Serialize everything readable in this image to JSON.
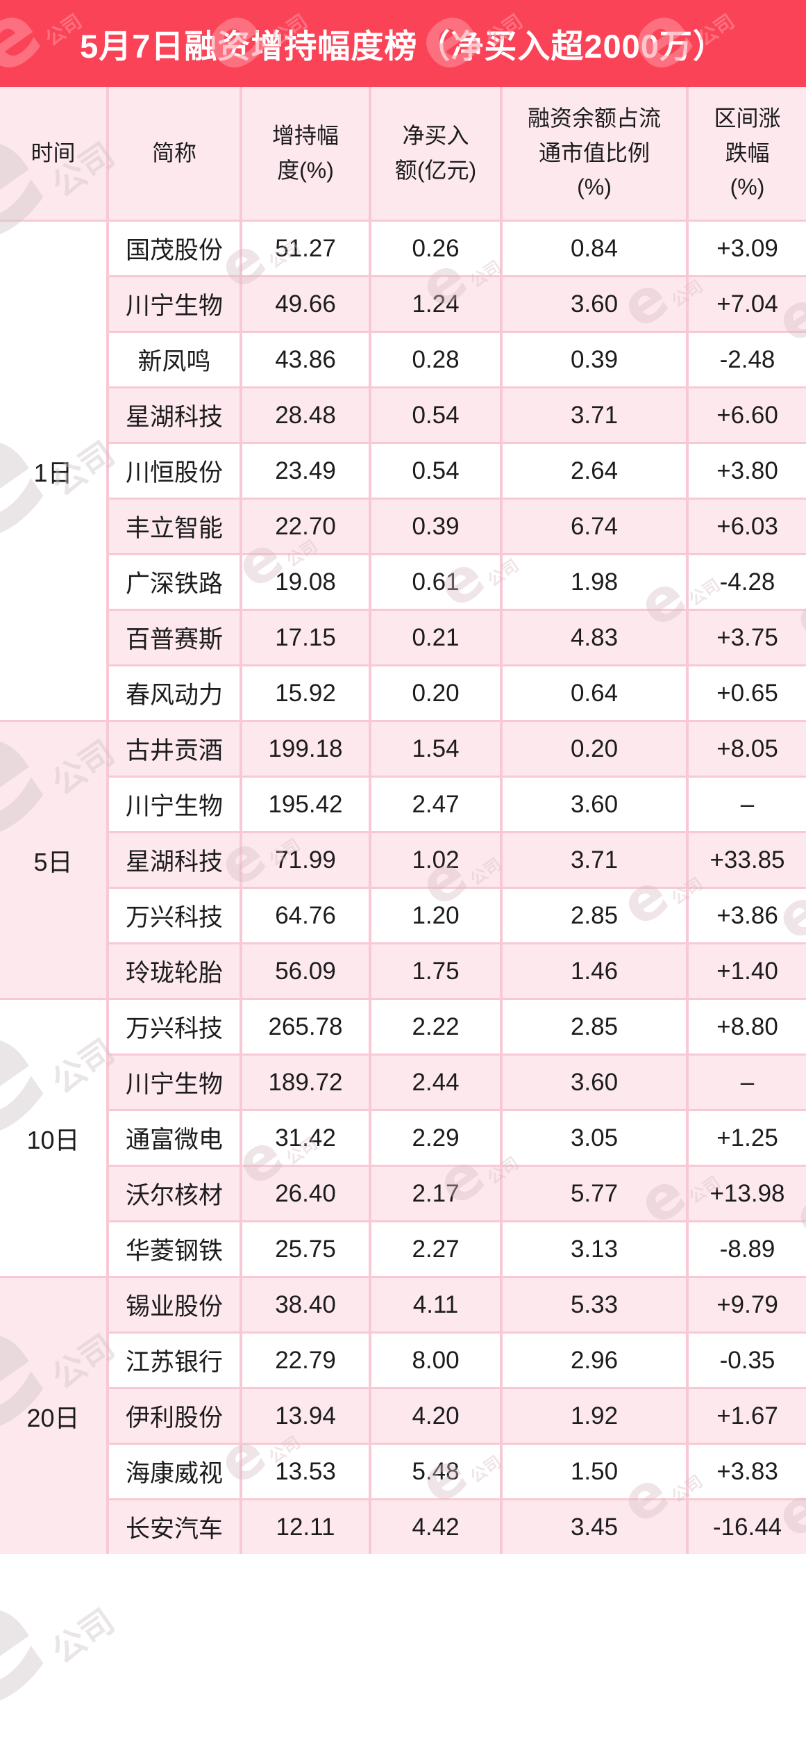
{
  "banner": {
    "title": "5月7日融资增持幅度榜（净买入超2000万）",
    "bg_color": "#fb4357",
    "text_color": "#ffffff"
  },
  "watermark": {
    "e": "e",
    "company": "公司"
  },
  "colors": {
    "row_pink": "#fde9ed",
    "row_white": "#ffffff",
    "grid_line": "#f8c9d4",
    "text": "#1c1c1e"
  },
  "chart_data": {
    "type": "table",
    "title": "5月7日融资增持幅度榜（净买入超2000万）",
    "columns": [
      "时间",
      "简称",
      "增持幅度(%)",
      "净买入额(亿元)",
      "融资余额占流通市值比例(%)",
      "区间涨跌幅(%)"
    ],
    "columns_display": [
      "时间",
      "简称",
      "增持幅\n度(%)",
      "净买入\n额(亿元)",
      "融资余额占流\n通市值比例\n(%)",
      "区间涨\n跌幅\n(%)"
    ],
    "groups": [
      {
        "time": "1日",
        "rows": [
          [
            "国茂股份",
            "51.27",
            "0.26",
            "0.84",
            "+3.09"
          ],
          [
            "川宁生物",
            "49.66",
            "1.24",
            "3.60",
            "+7.04"
          ],
          [
            "新凤鸣",
            "43.86",
            "0.28",
            "0.39",
            "-2.48"
          ],
          [
            "星湖科技",
            "28.48",
            "0.54",
            "3.71",
            "+6.60"
          ],
          [
            "川恒股份",
            "23.49",
            "0.54",
            "2.64",
            "+3.80"
          ],
          [
            "丰立智能",
            "22.70",
            "0.39",
            "6.74",
            "+6.03"
          ],
          [
            "广深铁路",
            "19.08",
            "0.61",
            "1.98",
            "-4.28"
          ],
          [
            "百普赛斯",
            "17.15",
            "0.21",
            "4.83",
            "+3.75"
          ],
          [
            "春风动力",
            "15.92",
            "0.20",
            "0.64",
            "+0.65"
          ]
        ]
      },
      {
        "time": "5日",
        "rows": [
          [
            "古井贡酒",
            "199.18",
            "1.54",
            "0.20",
            "+8.05"
          ],
          [
            "川宁生物",
            "195.42",
            "2.47",
            "3.60",
            "–"
          ],
          [
            "星湖科技",
            "71.99",
            "1.02",
            "3.71",
            "+33.85"
          ],
          [
            "万兴科技",
            "64.76",
            "1.20",
            "2.85",
            "+3.86"
          ],
          [
            "玲珑轮胎",
            "56.09",
            "1.75",
            "1.46",
            "+1.40"
          ]
        ]
      },
      {
        "time": "10日",
        "rows": [
          [
            "万兴科技",
            "265.78",
            "2.22",
            "2.85",
            "+8.80"
          ],
          [
            "川宁生物",
            "189.72",
            "2.44",
            "3.60",
            "–"
          ],
          [
            "通富微电",
            "31.42",
            "2.29",
            "3.05",
            "+1.25"
          ],
          [
            "沃尔核材",
            "26.40",
            "2.17",
            "5.77",
            "+13.98"
          ],
          [
            "华菱钢铁",
            "25.75",
            "2.27",
            "3.13",
            "-8.89"
          ]
        ]
      },
      {
        "time": "20日",
        "rows": [
          [
            "锡业股份",
            "38.40",
            "4.11",
            "5.33",
            "+9.79"
          ],
          [
            "江苏银行",
            "22.79",
            "8.00",
            "2.96",
            "-0.35"
          ],
          [
            "伊利股份",
            "13.94",
            "4.20",
            "1.92",
            "+1.67"
          ],
          [
            "海康威视",
            "13.53",
            "5.48",
            "1.50",
            "+3.83"
          ],
          [
            "长安汽车",
            "12.11",
            "4.42",
            "3.45",
            "-16.44"
          ]
        ]
      }
    ]
  }
}
